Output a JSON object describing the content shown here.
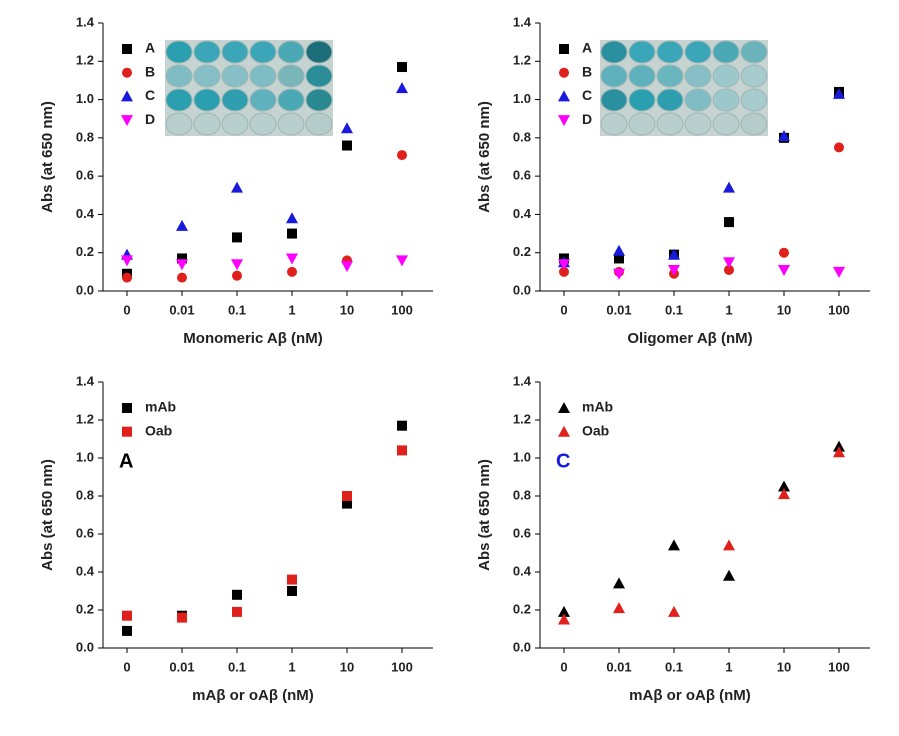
{
  "chart_data": [
    {
      "type": "scatter",
      "x_label": "Monomeric Aβ (nM)",
      "y_label": "Abs (at 650 nm)",
      "categories": [
        "0",
        "0.01",
        "0.1",
        "1",
        "10",
        "100"
      ],
      "ylim": [
        0,
        1.4
      ],
      "yticks": [
        {
          "value": 0,
          "label": "0.0"
        },
        0.2,
        0.4,
        0.6,
        0.8,
        {
          "value": 1,
          "label": "1.0"
        },
        1.2,
        1.4
      ],
      "legend": "upper left",
      "series": [
        {
          "name": "A",
          "color": "#000000",
          "marker": "square",
          "values": [
            0.09,
            0.17,
            0.28,
            0.3,
            0.76,
            1.17
          ]
        },
        {
          "name": "B",
          "color": "#e0201b",
          "marker": "circle",
          "values": [
            0.07,
            0.07,
            0.08,
            0.1,
            0.16,
            0.71
          ]
        },
        {
          "name": "C",
          "color": "#1a1adc",
          "marker": "triangle",
          "values": [
            0.19,
            0.34,
            0.54,
            0.38,
            0.85,
            1.06
          ]
        },
        {
          "name": "D",
          "color": "#ff00ff",
          "marker": "triangle-down",
          "values": [
            0.16,
            0.14,
            0.14,
            0.17,
            0.13,
            0.16
          ]
        }
      ]
    },
    {
      "type": "scatter",
      "x_label": "Oligomer Aβ (nM)",
      "y_label": "Abs (at 650 nm)",
      "categories": [
        "0",
        "0.01",
        "0.1",
        "1",
        "10",
        "100"
      ],
      "ylim": [
        0,
        1.4
      ],
      "yticks": [
        {
          "value": 0,
          "label": "0.0"
        },
        0.2,
        0.4,
        0.6,
        0.8,
        {
          "value": 1,
          "label": "1.0"
        },
        1.2,
        1.4
      ],
      "legend": "upper left",
      "series": [
        {
          "name": "A",
          "color": "#000000",
          "marker": "square",
          "values": [
            0.17,
            0.17,
            0.19,
            0.36,
            0.8,
            1.04
          ]
        },
        {
          "name": "B",
          "color": "#e0201b",
          "marker": "circle",
          "values": [
            0.1,
            0.1,
            0.09,
            0.11,
            0.2,
            0.75
          ]
        },
        {
          "name": "C",
          "color": "#1a1adc",
          "marker": "triangle",
          "values": [
            0.15,
            0.21,
            0.19,
            0.54,
            0.81,
            1.03
          ]
        },
        {
          "name": "D",
          "color": "#ff00ff",
          "marker": "triangle-down",
          "values": [
            0.14,
            0.09,
            0.11,
            0.15,
            0.11,
            0.1
          ]
        }
      ]
    },
    {
      "type": "scatter",
      "x_label": "mAβ or oAβ (nM)",
      "y_label": "Abs (at 650 nm)",
      "categories": [
        "0",
        "0.01",
        "0.1",
        "1",
        "10",
        "100"
      ],
      "ylim": [
        0,
        1.4
      ],
      "yticks": [
        {
          "value": 0,
          "label": "0.0"
        },
        0.2,
        0.4,
        0.6,
        0.8,
        {
          "value": 1,
          "label": "1.0"
        },
        1.2,
        1.4
      ],
      "legend": "upper left",
      "annotation": {
        "text": "A",
        "color": "#000000"
      },
      "series": [
        {
          "name": "mAb",
          "color": "#000000",
          "marker": "square",
          "values": [
            0.09,
            0.17,
            0.28,
            0.3,
            0.76,
            1.17
          ]
        },
        {
          "name": "Oab",
          "color": "#e0201b",
          "marker": "square",
          "values": [
            0.17,
            0.16,
            0.19,
            0.36,
            0.8,
            1.04
          ]
        }
      ]
    },
    {
      "type": "scatter",
      "x_label": "mAβ or oAβ (nM)",
      "y_label": "Abs (at 650 nm)",
      "categories": [
        "0",
        "0.01",
        "0.1",
        "1",
        "10",
        "100"
      ],
      "ylim": [
        0,
        1.4
      ],
      "yticks": [
        {
          "value": 0,
          "label": "0.0"
        },
        0.2,
        0.4,
        0.6,
        0.8,
        {
          "value": 1,
          "label": "1.0"
        },
        1.2,
        1.4
      ],
      "legend": "upper left",
      "annotation": {
        "text": "C",
        "color": "#1a1adc"
      },
      "series": [
        {
          "name": "mAb",
          "color": "#000000",
          "marker": "triangle",
          "values": [
            0.19,
            0.34,
            0.54,
            0.38,
            0.85,
            1.06
          ]
        },
        {
          "name": "Oab",
          "color": "#e0201b",
          "marker": "triangle",
          "values": [
            0.15,
            0.21,
            0.19,
            0.54,
            0.81,
            1.03
          ]
        }
      ]
    }
  ]
}
